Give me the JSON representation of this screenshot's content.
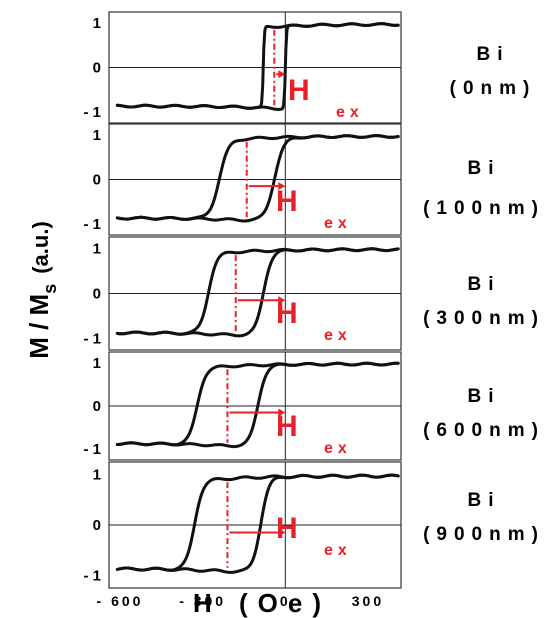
{
  "chart_data": {
    "type": "line",
    "xlabel": "H (Oe)",
    "ylabel": "M / M",
    "ylabel_sub": "s",
    "ylabel_unit": "(a.u.)",
    "x_ticks": [
      "-600",
      "-300",
      "0",
      "300"
    ],
    "x_tick_values": [
      -600,
      -300,
      0,
      300
    ],
    "y_ticks": [
      "1",
      "0",
      "-1"
    ],
    "y_tick_values": [
      1,
      0,
      -1
    ],
    "xlim": [
      -640,
      420
    ],
    "ylim": [
      -1.25,
      1.25
    ],
    "annotation_main": "H",
    "annotation_sub": "ex",
    "panels": [
      {
        "label_line1": "Bi",
        "label_line2": "(0nm)",
        "exchange_bias": -40,
        "coercivity": 40,
        "rise_width": 4,
        "series": [
          {
            "x": [
              -600,
              -200,
              -100,
              -80,
              -60,
              0,
              5,
              20,
              100,
              400
            ],
            "y": [
              -0.97,
              -0.96,
              -0.95,
              -0.93,
              -0.85,
              0.1,
              0.6,
              0.85,
              0.9,
              0.92
            ]
          }
        ]
      },
      {
        "label_line1": "Bi",
        "label_line2": "(100nm)",
        "exchange_bias": -140,
        "coercivity": 100,
        "rise_width": 34,
        "series": [
          {
            "x": [
              -600,
              -400,
              -300,
              -240,
              -200,
              -100,
              0,
              50,
              100,
              400
            ],
            "y": [
              -0.96,
              -0.95,
              -0.9,
              -0.6,
              0.6,
              0.85,
              0.9,
              0.93,
              0.95,
              0.97
            ]
          }
        ]
      },
      {
        "label_line1": "Bi",
        "label_line2": "(300nm)",
        "exchange_bias": -180,
        "coercivity": 100,
        "rise_width": 30,
        "series": [
          {
            "x": [
              -600,
              -400,
              -340,
              -280,
              -200,
              -100,
              0,
              100,
              400
            ],
            "y": [
              -0.95,
              -0.93,
              -0.85,
              0.4,
              0.75,
              0.85,
              0.9,
              0.95,
              0.97
            ]
          }
        ]
      },
      {
        "label_line1": "Bi",
        "label_line2": "(600nm)",
        "exchange_bias": -210,
        "coercivity": 110,
        "rise_width": 30,
        "series": [
          {
            "x": [
              -600,
              -400,
              -350,
              -300,
              -200,
              -100,
              0,
              100,
              400
            ],
            "y": [
              -0.95,
              -0.93,
              -0.8,
              0.3,
              0.75,
              0.83,
              0.9,
              0.95,
              0.97
            ]
          }
        ]
      },
      {
        "label_line1": "Bi",
        "label_line2": "(900nm)",
        "exchange_bias": -210,
        "coercivity": 120,
        "rise_width": 30,
        "series": [
          {
            "x": [
              -600,
              -400,
              -350,
              -300,
              -200,
              -100,
              0,
              100,
              400
            ],
            "y": [
              -0.95,
              -0.93,
              -0.8,
              0.3,
              0.75,
              0.83,
              0.9,
              0.95,
              0.97
            ]
          }
        ]
      }
    ]
  }
}
